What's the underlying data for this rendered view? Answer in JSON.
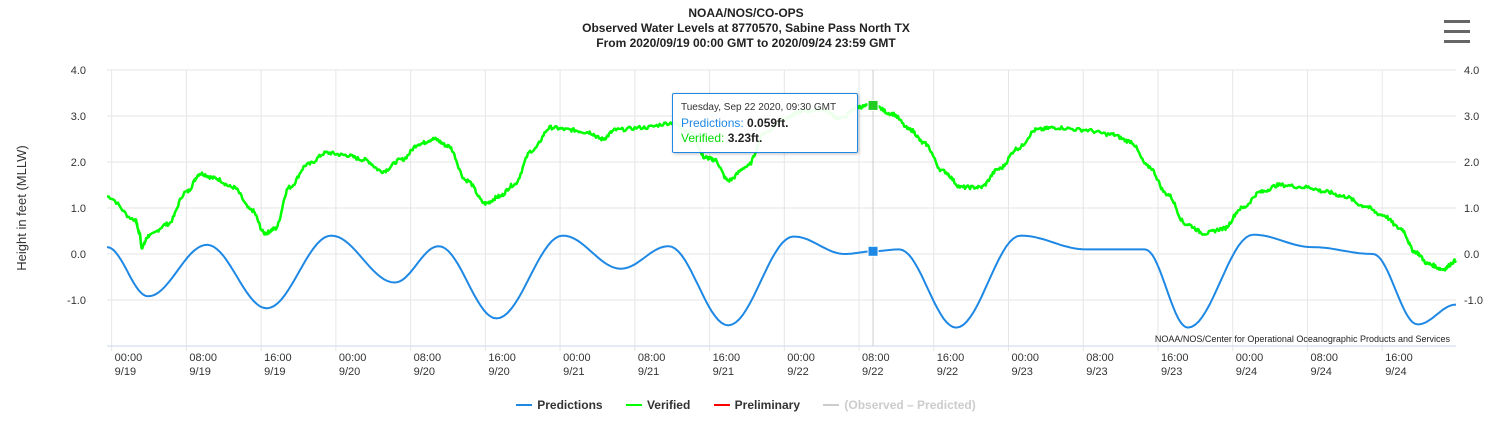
{
  "header": {
    "line1": "NOAA/NOS/CO-OPS",
    "line2": "Observed Water Levels at 8770570, Sabine Pass North TX",
    "line3": "From 2020/09/19 00:00 GMT to 2020/09/24 23:59 GMT"
  },
  "credit": "NOAA/NOS/Center for Operational Oceanographic Products and Services",
  "tooltip": {
    "date": "Tuesday, Sep 22 2020, 09:30 GMT",
    "pred_label": "Predictions:",
    "pred_value": "0.059ft.",
    "ver_label": "Verified:",
    "ver_value": "3.23ft."
  },
  "legend": [
    {
      "name": "Predictions",
      "color": "#1e88e5",
      "enabled": true
    },
    {
      "name": "Verified",
      "color": "#00ff00",
      "enabled": true
    },
    {
      "name": "Preliminary",
      "color": "#ff0000",
      "enabled": true
    },
    {
      "name": "(Observed – Predicted)",
      "color": "#cccccc",
      "enabled": false
    }
  ],
  "colors": {
    "predictions": "#1e88e5",
    "verified": "#00ff00",
    "grid": "#e6e6e6",
    "crosshair": "#cccccc"
  },
  "chart_data": {
    "type": "line",
    "ylabel": "Height in feet (MLLW)",
    "ylim": [
      -2.0,
      4.0
    ],
    "yticks": [
      "4.0",
      "3.0",
      "2.0",
      "1.0",
      "0.0",
      "-1.0"
    ],
    "ytick_values": [
      4,
      3,
      2,
      1,
      0,
      -1
    ],
    "x_unit": "hours since 2020/09/19 00:00 GMT",
    "xlim": [
      -0.5,
      143.9
    ],
    "xticks": [
      {
        "hour": 0,
        "time": "00:00",
        "date": "9/19"
      },
      {
        "hour": 8,
        "time": "08:00",
        "date": "9/19"
      },
      {
        "hour": 16,
        "time": "16:00",
        "date": "9/19"
      },
      {
        "hour": 24,
        "time": "00:00",
        "date": "9/20"
      },
      {
        "hour": 32,
        "time": "08:00",
        "date": "9/20"
      },
      {
        "hour": 40,
        "time": "16:00",
        "date": "9/20"
      },
      {
        "hour": 48,
        "time": "00:00",
        "date": "9/21"
      },
      {
        "hour": 56,
        "time": "08:00",
        "date": "9/21"
      },
      {
        "hour": 64,
        "time": "16:00",
        "date": "9/21"
      },
      {
        "hour": 72,
        "time": "00:00",
        "date": "9/22"
      },
      {
        "hour": 80,
        "time": "08:00",
        "date": "9/22"
      },
      {
        "hour": 88,
        "time": "16:00",
        "date": "9/22"
      },
      {
        "hour": 96,
        "time": "00:00",
        "date": "9/23"
      },
      {
        "hour": 104,
        "time": "08:00",
        "date": "9/23"
      },
      {
        "hour": 112,
        "time": "16:00",
        "date": "9/23"
      },
      {
        "hour": 120,
        "time": "00:00",
        "date": "9/24"
      },
      {
        "hour": 128,
        "time": "08:00",
        "date": "9/24"
      },
      {
        "hour": 136,
        "time": "16:00",
        "date": "9/24"
      }
    ],
    "grid": true,
    "legend_position": "bottom",
    "highlight_hour": 81.5,
    "series": [
      {
        "name": "Predictions",
        "x": [
          -0.5,
          3.9,
          10.2,
          16.6,
          23.5,
          30.3,
          35.0,
          41.2,
          48.3,
          54.5,
          59.6,
          66.0,
          73.0,
          78.5,
          81.5,
          84.3,
          90.4,
          97.3,
          104.3,
          110.6,
          115.2,
          122.2,
          128.5,
          135.0,
          139.8,
          143.9
        ],
        "y": [
          0.15,
          -0.92,
          0.2,
          -1.18,
          0.4,
          -0.62,
          0.17,
          -1.4,
          0.4,
          -0.32,
          0.17,
          -1.55,
          0.38,
          0.0,
          0.059,
          0.1,
          -1.6,
          0.4,
          0.1,
          0.1,
          -1.6,
          0.42,
          0.15,
          0.0,
          -1.53,
          -1.1
        ]
      },
      {
        "name": "Verified",
        "x": [
          -0.5,
          2.5,
          3.0,
          3.2,
          4.0,
          6.0,
          8.0,
          9.5,
          11.0,
          13.0,
          15.0,
          16.4,
          17.5,
          19.0,
          21.0,
          23.0,
          25.0,
          27.0,
          29.0,
          31.0,
          33.0,
          34.5,
          36.0,
          38.0,
          40.0,
          41.5,
          43.0,
          45.0,
          47.0,
          49.0,
          51.0,
          52.5,
          54.0,
          57.0,
          60.0,
          62.0,
          63.5,
          64.5,
          66.0,
          68.0,
          70.0,
          72.0,
          74.0,
          76.0,
          78.0,
          80.0,
          81.5,
          83.5,
          85.5,
          87.0,
          89.0,
          91.0,
          93.0,
          95.0,
          97.0,
          99.0,
          101.0,
          104.0,
          107.0,
          109.0,
          111.0,
          113.0,
          115.0,
          117.0,
          119.0,
          121.0,
          123.0,
          125.0,
          128.0,
          130.0,
          132.0,
          134.0,
          136.0,
          138.0,
          139.5,
          141.0,
          142.5,
          143.9
        ],
        "y": [
          1.25,
          0.75,
          0.45,
          0.15,
          0.4,
          0.65,
          1.35,
          1.75,
          1.65,
          1.45,
          0.95,
          0.45,
          0.55,
          1.45,
          1.95,
          2.2,
          2.15,
          2.05,
          1.8,
          2.05,
          2.4,
          2.5,
          2.35,
          1.6,
          1.1,
          1.25,
          1.5,
          2.25,
          2.75,
          2.7,
          2.65,
          2.5,
          2.7,
          2.75,
          2.85,
          2.65,
          2.1,
          2.05,
          1.6,
          1.9,
          2.65,
          2.95,
          3.1,
          3.15,
          2.95,
          3.2,
          3.23,
          3.05,
          2.7,
          2.4,
          1.8,
          1.45,
          1.45,
          1.85,
          2.3,
          2.7,
          2.75,
          2.7,
          2.6,
          2.45,
          1.9,
          1.3,
          0.65,
          0.45,
          0.55,
          1.0,
          1.35,
          1.5,
          1.45,
          1.35,
          1.25,
          1.05,
          0.85,
          0.55,
          0.05,
          -0.22,
          -0.33,
          -0.15
        ]
      }
    ]
  }
}
